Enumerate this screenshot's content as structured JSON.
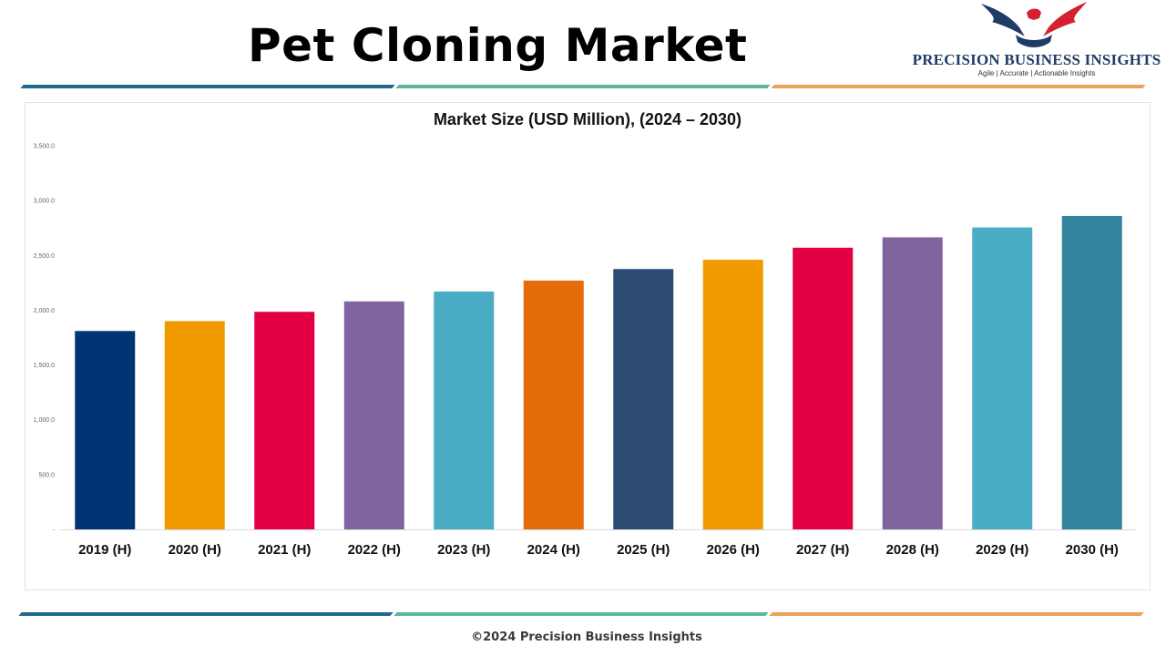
{
  "header": {
    "title": "Pet Cloning Market",
    "brand_name": "PRECISION BUSINESS INSIGHTS",
    "brand_tagline": "Agile | Accurate | Actionable Insights",
    "logo_icon": "eagle-handshake-logo"
  },
  "footer": {
    "copyright": "©2024 Precision Business Insights"
  },
  "colors": {
    "rule_blue": "#1f6a8e",
    "rule_green": "#5cb89a",
    "rule_orange": "#e9a35a"
  },
  "chart_data": {
    "type": "bar",
    "title": "Market Size (USD Million), (2024 – 2030)",
    "xlabel": "",
    "ylabel": "",
    "categories": [
      "2019 (H)",
      "2020 (H)",
      "2021 (H)",
      "2022 (H)",
      "2023 (H)",
      "2024 (H)",
      "2025 (H)",
      "2026 (H)",
      "2027 (H)",
      "2028 (H)",
      "2029 (H)",
      "2030 (H)"
    ],
    "values": [
      1810,
      1900,
      1985,
      2080,
      2170,
      2270,
      2375,
      2460,
      2570,
      2665,
      2755,
      2860
    ],
    "colors": [
      "#003473",
      "#f09a00",
      "#e20042",
      "#8064a0",
      "#4bacc6",
      "#e46c0a",
      "#2b4b72",
      "#f09a00",
      "#e20042",
      "#8064a0",
      "#4bacc6",
      "#31849b"
    ],
    "ylim": [
      0,
      3500
    ],
    "yticks": [
      0,
      500,
      1000,
      1500,
      2000,
      2500,
      3000,
      3500
    ],
    "ytick_labels": [
      "-",
      "500.0",
      "1,000.0",
      "1,500.0",
      "2,000.0",
      "2,500.0",
      "3,000.0",
      "3,500.0"
    ],
    "grid": false,
    "legend": "none"
  }
}
